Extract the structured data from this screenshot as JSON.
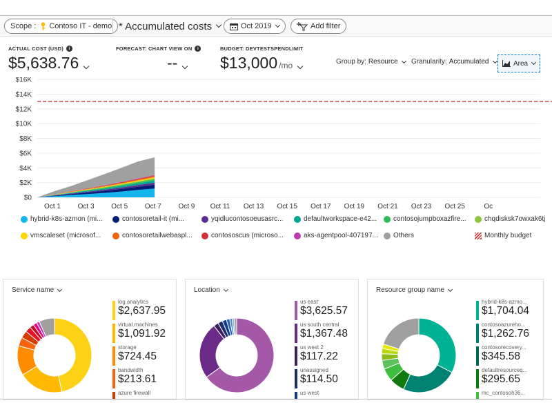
{
  "toolbar": {
    "scope_label": "Scope :",
    "scope_value": "Contoso IT - demo",
    "view_title": "* Accumulated costs",
    "date_label": "Oct 2019",
    "add_filter_label": "Add filter"
  },
  "kpis": {
    "actual": {
      "label": "ACTUAL COST (USD)",
      "value": "$5,638.76"
    },
    "forecast": {
      "label": "FORECAST: CHART VIEW ON",
      "value": "--"
    },
    "budget": {
      "label": "BUDGET: DEVTESTSPENDLIMIT",
      "value": "$13,000",
      "unit": "/mo"
    }
  },
  "controls": {
    "group_by_label": "Group by:",
    "group_by_value": "Resource",
    "granularity_label": "Granularity:",
    "granularity_value": "Accumulated",
    "chart_type_label": "Area"
  },
  "chart_data": {
    "type": "area",
    "ylabel_ticks": [
      "$0",
      "$2K",
      "$4K",
      "$6K",
      "$8K",
      "$10K",
      "$12K",
      "$14K",
      "$16K"
    ],
    "ylim": [
      0,
      16000
    ],
    "x_ticks": [
      "Oct 1",
      "Oct 3",
      "Oct 5",
      "Oct 7",
      "Oct 9",
      "Oct 11",
      "Oct 13",
      "Oct 15",
      "Oct 17",
      "Oct 19",
      "Oct 21",
      "Oct 23",
      "Oct 25",
      "Oc"
    ],
    "x_days": [
      1,
      2,
      3,
      4,
      5,
      6,
      7,
      8
    ],
    "budget_line": 13000,
    "series": [
      {
        "name": "hybrid-k8s-azmon (mi...",
        "color": "#13b5ea",
        "values": [
          0,
          150,
          300,
          450,
          600,
          790,
          1000,
          1200
        ]
      },
      {
        "name": "contosoretail-it (mi...",
        "color": "#001c74",
        "values": [
          0,
          70,
          140,
          210,
          280,
          350,
          420,
          500
        ]
      },
      {
        "name": "yqidlucontosoeusasrc...",
        "color": "#5c2d91",
        "values": [
          0,
          40,
          80,
          120,
          160,
          200,
          240,
          280
        ]
      },
      {
        "name": "defaultworkspace-e42...",
        "color": "#00a693",
        "values": [
          0,
          40,
          80,
          120,
          160,
          200,
          240,
          280
        ]
      },
      {
        "name": "contosojumpboxazfire...",
        "color": "#2ebd59",
        "values": [
          0,
          25,
          50,
          75,
          100,
          125,
          150,
          180
        ]
      },
      {
        "name": "chqdisksk7owxak6tj",
        "color": "#8dc63f",
        "values": [
          0,
          20,
          40,
          60,
          80,
          100,
          120,
          140
        ]
      },
      {
        "name": "vmscaleset (microsof...",
        "color": "#ffd700",
        "values": [
          0,
          20,
          40,
          60,
          80,
          100,
          120,
          140
        ]
      },
      {
        "name": "contosoretailwebaspl...",
        "color": "#f7630c",
        "values": [
          0,
          20,
          40,
          60,
          80,
          100,
          120,
          140
        ]
      },
      {
        "name": "contososcus (microso...",
        "color": "#d13438",
        "values": [
          0,
          15,
          30,
          45,
          60,
          75,
          90,
          100
        ]
      },
      {
        "name": "aks-agentpool-407197...",
        "color": "#c239b3",
        "values": [
          0,
          10,
          20,
          30,
          40,
          50,
          60,
          70
        ]
      },
      {
        "name": "Others",
        "color": "#a0a0a0",
        "values": [
          0,
          400,
          700,
          1100,
          1500,
          1900,
          2300,
          2400
        ]
      }
    ],
    "budget_legend": "Monthly budget"
  },
  "cards": [
    {
      "title": "Service name",
      "items": [
        {
          "name": "log analytics",
          "value": "$2,637.95",
          "color": "#fcd116"
        },
        {
          "name": "virtual machines",
          "value": "$1,091.92",
          "color": "#ffb900"
        },
        {
          "name": "storage",
          "value": "$724.45",
          "color": "#ff8c00"
        },
        {
          "name": "bandwidth",
          "value": "$213.61",
          "color": "#f7630c"
        },
        {
          "name": "azure firewall",
          "value": "",
          "color": "#d83b01"
        }
      ],
      "donut": [
        {
          "v": 2637.95,
          "c": "#fcd116"
        },
        {
          "v": 1091.92,
          "c": "#ffb900"
        },
        {
          "v": 724.45,
          "c": "#ff8c00"
        },
        {
          "v": 213.61,
          "c": "#f7630c"
        },
        {
          "v": 180,
          "c": "#d83b01"
        },
        {
          "v": 140,
          "c": "#e81123"
        },
        {
          "v": 100,
          "c": "#c50f1f"
        },
        {
          "v": 90,
          "c": "#e3008c"
        },
        {
          "v": 70,
          "c": "#c239b3"
        },
        {
          "v": 380,
          "c": "#a0a0a0"
        }
      ]
    },
    {
      "title": "Location",
      "items": [
        {
          "name": "us east",
          "value": "$3,625.57",
          "color": "#a458a8"
        },
        {
          "name": "us south central",
          "value": "$1,367.48",
          "color": "#6b2a88"
        },
        {
          "name": "us west 2",
          "value": "$117.22",
          "color": "#3b1f63"
        },
        {
          "name": "unassigned",
          "value": "$114.50",
          "color": "#1f2d6b"
        },
        {
          "name": "us west",
          "value": "",
          "color": "#0f3b8f"
        }
      ],
      "donut": [
        {
          "v": 3625.57,
          "c": "#a458a8"
        },
        {
          "v": 1367.48,
          "c": "#6b2a88"
        },
        {
          "v": 117.22,
          "c": "#3b1f63"
        },
        {
          "v": 114.5,
          "c": "#1f2d6b"
        },
        {
          "v": 100,
          "c": "#0f3b8f"
        },
        {
          "v": 80,
          "c": "#2b5fb8"
        },
        {
          "v": 60,
          "c": "#4f8fd9"
        },
        {
          "v": 50,
          "c": "#8ab4e8"
        },
        {
          "v": 60,
          "c": "#a0a0a0"
        }
      ]
    },
    {
      "title": "Resource group name",
      "items": [
        {
          "name": "hybrid-k8s-azmo...",
          "value": "$1,704.04",
          "color": "#00b294"
        },
        {
          "name": "contosoazureho...",
          "value": "$1,262.76",
          "color": "#008272"
        },
        {
          "name": "contosorecovery...",
          "value": "$345.58",
          "color": "#00695c"
        },
        {
          "name": "defaultresourceq...",
          "value": "$295.65",
          "color": "#107c10"
        },
        {
          "name": "mc_contosoh36...",
          "value": "",
          "color": "#3ebd3e"
        }
      ],
      "donut": [
        {
          "v": 1704.04,
          "c": "#00b294"
        },
        {
          "v": 1262.76,
          "c": "#008272"
        },
        {
          "v": 345.58,
          "c": "#107c10"
        },
        {
          "v": 295.65,
          "c": "#3ebd3e"
        },
        {
          "v": 200,
          "c": "#5cc35c"
        },
        {
          "v": 150,
          "c": "#8cbd18"
        },
        {
          "v": 120,
          "c": "#bad80a"
        },
        {
          "v": 100,
          "c": "#e6e600"
        },
        {
          "v": 1050,
          "c": "#a0a0a0"
        }
      ]
    }
  ]
}
